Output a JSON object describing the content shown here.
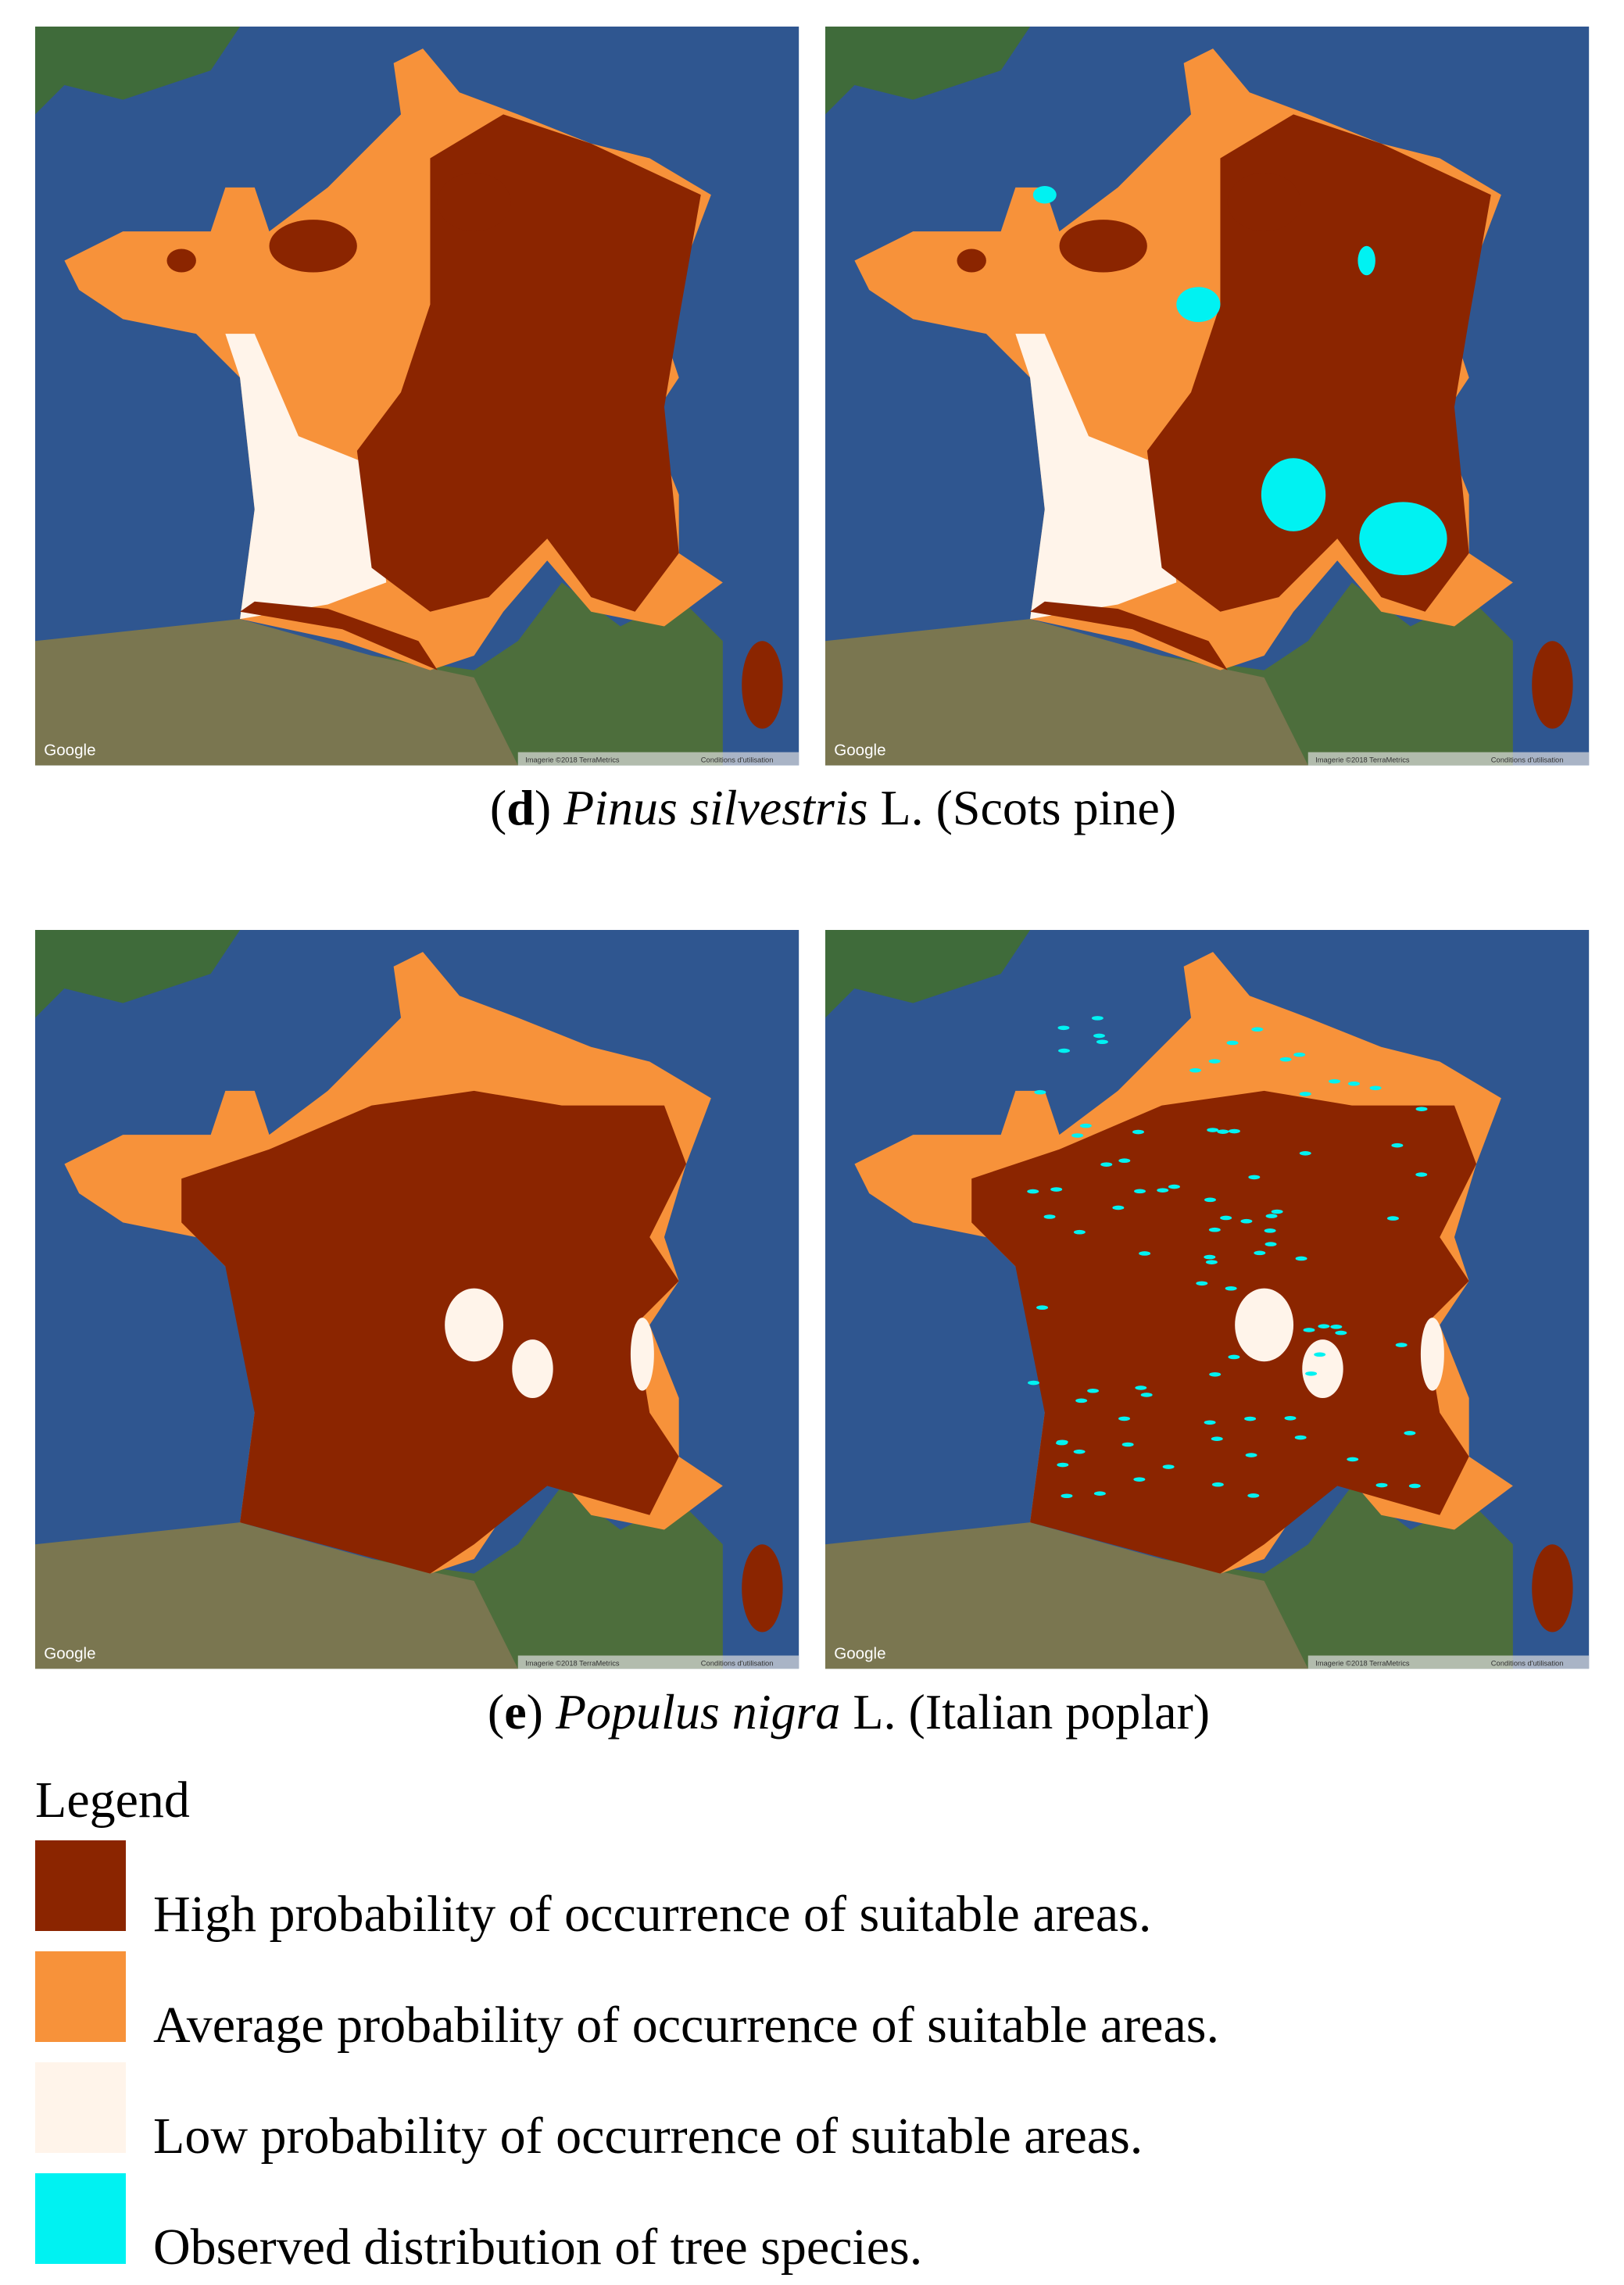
{
  "panels": [
    {
      "caption": {
        "open": "(",
        "letter": "d",
        "close": ")",
        "species": "Pinus silvestris",
        "rest": "L. (Scots pine)"
      }
    },
    {
      "caption": {
        "open": "(",
        "letter": "e",
        "close": ")",
        "species": "Populus nigra",
        "rest": "L. (Italian poplar)"
      }
    }
  ],
  "map_attribution": {
    "logo": "Google",
    "imagery": "Imagerie ©2018 TerraMetrics",
    "terms": "Conditions d'utilisation"
  },
  "legend": {
    "title": "Legend",
    "items": [
      {
        "label": "High probability of occurrence of suitable areas.",
        "color": "#8b2500"
      },
      {
        "label": "Average probability of occurrence of suitable areas.",
        "color": "#f7923a"
      },
      {
        "label": "Low probability of occurrence of suitable areas.",
        "color": "#fff4ea"
      },
      {
        "label": "Observed distribution of tree species.",
        "color": "#00f2f2"
      }
    ]
  }
}
